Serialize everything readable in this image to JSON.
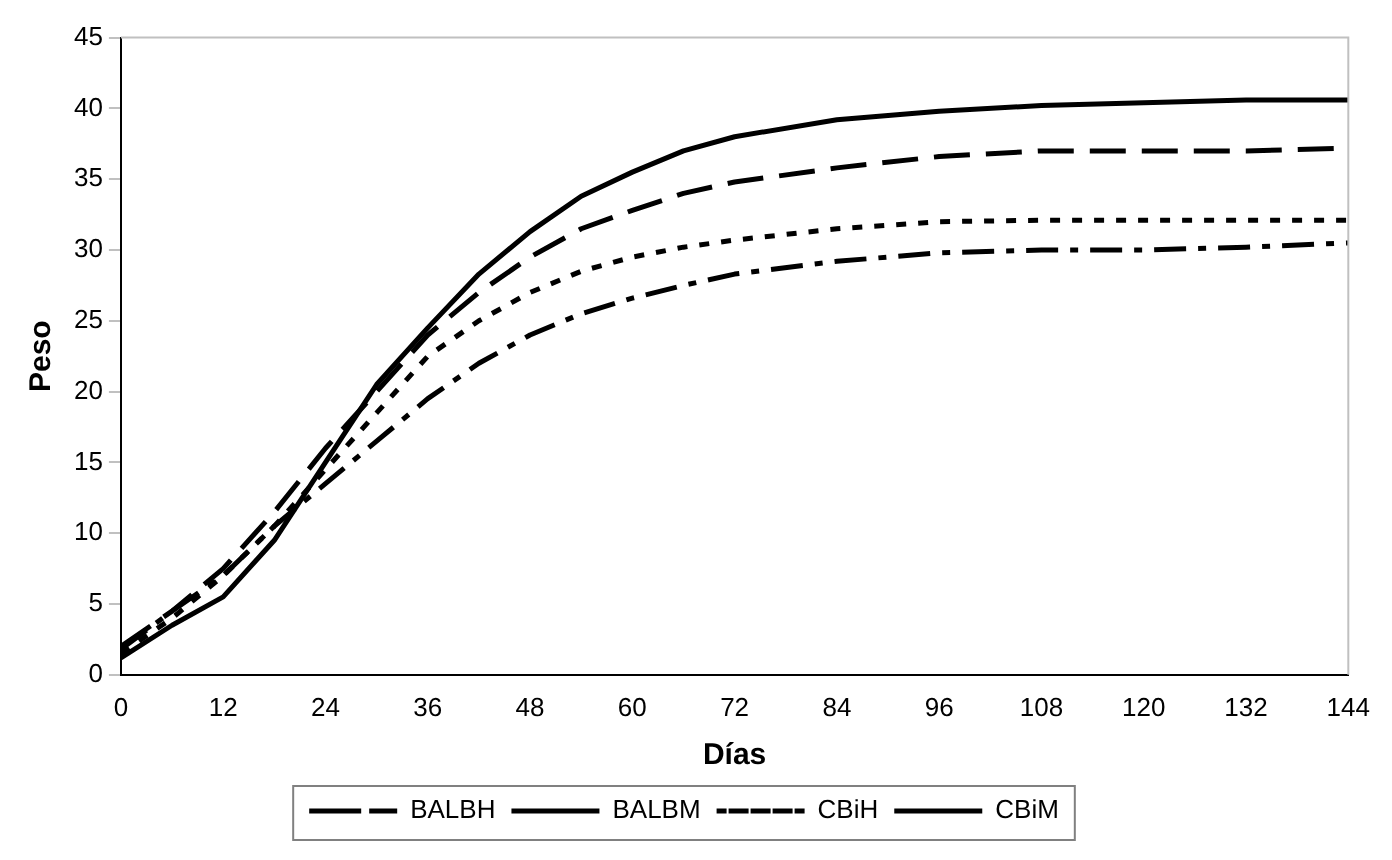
{
  "chart_data": {
    "type": "line",
    "xlabel": "Días",
    "ylabel": "Peso",
    "x": [
      0,
      6,
      12,
      18,
      24,
      30,
      36,
      42,
      48,
      54,
      60,
      66,
      72,
      84,
      96,
      108,
      120,
      132,
      144
    ],
    "xlim": [
      0,
      144
    ],
    "xticks": [
      0,
      12,
      24,
      36,
      48,
      60,
      72,
      84,
      96,
      108,
      120,
      132,
      144
    ],
    "ylim": [
      0,
      45
    ],
    "yticks": [
      0,
      5,
      10,
      15,
      20,
      25,
      30,
      35,
      40,
      45
    ],
    "grid": false,
    "legend": "bottom",
    "marker": "none",
    "series": [
      {
        "name": "BALBH",
        "color": "#000000",
        "line_style": "dashdot",
        "values": [
          1.8,
          4.5,
          7,
          10.5,
          13.5,
          16.5,
          19.5,
          22,
          24,
          25.5,
          26.6,
          27.5,
          28.3,
          29.2,
          29.8,
          30,
          30,
          30.2,
          30.5
        ]
      },
      {
        "name": "BALBM",
        "color": "#000000",
        "line_style": "dashed",
        "values": [
          2,
          4.5,
          7.5,
          11.5,
          16,
          20,
          24,
          27,
          29.5,
          31.5,
          32.8,
          34,
          34.8,
          35.8,
          36.6,
          37,
          37,
          37,
          37.2
        ]
      },
      {
        "name": "CBiH",
        "color": "#000000",
        "line_style": "dotted",
        "values": [
          1.5,
          4,
          7,
          10.5,
          14.5,
          18.5,
          22.5,
          25,
          27,
          28.5,
          29.5,
          30.2,
          30.7,
          31.5,
          32,
          32.1,
          32.1,
          32.1,
          32.1
        ]
      },
      {
        "name": "CBiM",
        "color": "#000000",
        "line_style": "solid",
        "values": [
          1.2,
          3.5,
          5.5,
          9.5,
          15,
          20.5,
          24.5,
          28.3,
          31.3,
          33.8,
          35.5,
          37,
          38,
          39.2,
          39.8,
          40.2,
          40.4,
          40.6,
          40.6
        ]
      }
    ]
  }
}
